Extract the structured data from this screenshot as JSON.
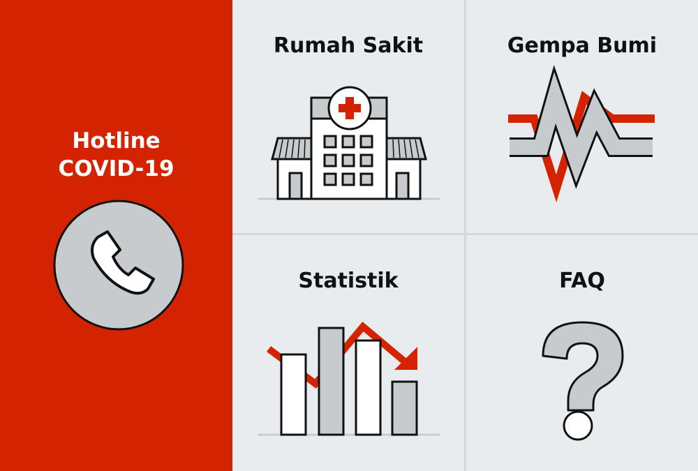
{
  "colors": {
    "brand_red": "#d42300",
    "background": "#e8ecee",
    "icon_gray": "#c8cbcd"
  },
  "hotline": {
    "line1": "Hotline",
    "line2": "COVID-19",
    "icon": "phone-icon"
  },
  "tiles": [
    {
      "label": "Rumah Sakit",
      "icon": "hospital-icon"
    },
    {
      "label": "Gempa Bumi",
      "icon": "seismograph-icon"
    },
    {
      "label": "Statistik",
      "icon": "bar-chart-icon"
    },
    {
      "label": "FAQ",
      "icon": "question-mark-icon"
    }
  ]
}
